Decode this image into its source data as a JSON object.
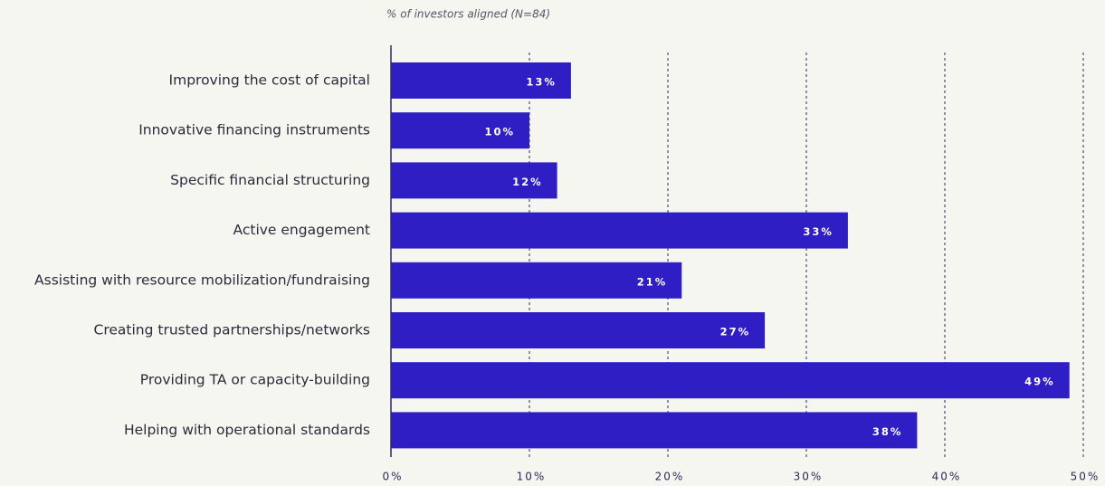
{
  "chart_data": {
    "type": "barh",
    "subtitle": "% of investors aligned (N=84)",
    "categories": [
      "Improving the cost of capital",
      "Innovative financing instruments",
      "Specific financial structuring",
      "Active engagement",
      "Assisting with resource mobilization/fundraising",
      "Creating trusted partnerships/networks",
      "Providing TA or capacity-building",
      "Helping with operational standards"
    ],
    "values": [
      13,
      10,
      12,
      33,
      21,
      27,
      49,
      38
    ],
    "value_labels": [
      "13%",
      "10%",
      "12%",
      "33%",
      "21%",
      "27%",
      "49%",
      "38%"
    ],
    "color": "#2e1ec4",
    "xlim": [
      0,
      50
    ],
    "xticks": [
      {
        "value": 0,
        "label": "0%"
      },
      {
        "value": 10,
        "label": "10%"
      },
      {
        "value": 20,
        "label": "20%"
      },
      {
        "value": 30,
        "label": "30%"
      },
      {
        "value": 40,
        "label": "40%"
      },
      {
        "value": 50,
        "label": "50%"
      }
    ],
    "grid": true
  }
}
